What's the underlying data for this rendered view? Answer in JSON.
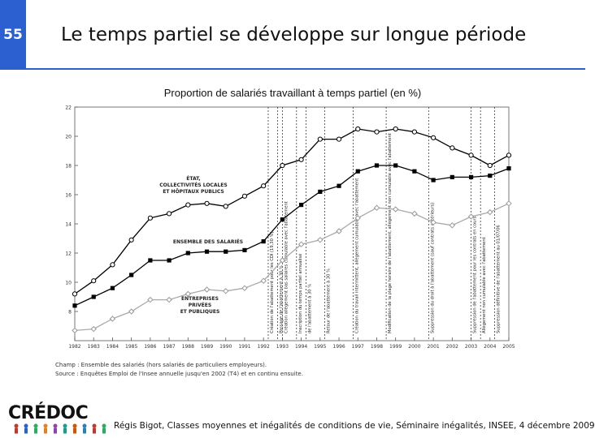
{
  "slide": {
    "number": "55",
    "title": "Le temps partiel se développe sur longue période"
  },
  "chart_data": {
    "type": "line",
    "title": "Proportion de salariés travaillant à temps partiel (en %)",
    "xlabel": "",
    "ylabel": "",
    "x": [
      1982,
      1983,
      1984,
      1985,
      1986,
      1987,
      1988,
      1989,
      1990,
      1991,
      1992,
      1993,
      1994,
      1995,
      1996,
      1997,
      1998,
      1999,
      2000,
      2001,
      2002,
      2003,
      2004,
      2005
    ],
    "ylim": [
      6,
      22
    ],
    "yticks": [
      8,
      10,
      12,
      14,
      16,
      18,
      20,
      22
    ],
    "ytick_labels": [
      "8",
      "10",
      "12",
      "14",
      "16",
      "18",
      "20",
      "22"
    ],
    "series": [
      {
        "name": "ÉTAT, COLLECTIVITÉS LOCALES ET HÔPITAUX PUBLICS",
        "label_lines": [
          "ÉTAT,",
          "COLLECTIVITÉS LOCALES",
          "ET HÔPITAUX PUBLICS"
        ],
        "marker": "open-circle",
        "values": [
          9.2,
          10.1,
          11.2,
          12.9,
          14.4,
          14.7,
          15.3,
          15.4,
          15.2,
          15.9,
          16.6,
          18.0,
          18.4,
          19.8,
          19.8,
          20.5,
          20.3,
          20.5,
          20.3,
          19.9,
          19.2,
          18.7,
          18.0,
          18.7
        ]
      },
      {
        "name": "ENSEMBLE DES SALARIÉS",
        "label_lines": [
          "ENSEMBLE DES SALARIÉS"
        ],
        "marker": "filled-square",
        "values": [
          8.4,
          9.0,
          9.6,
          10.5,
          11.5,
          11.5,
          12.0,
          12.1,
          12.1,
          12.2,
          12.8,
          14.3,
          15.3,
          16.2,
          16.6,
          17.6,
          18.0,
          18.0,
          17.6,
          17.0,
          17.2,
          17.2,
          17.3,
          17.8
        ]
      },
      {
        "name": "ENTREPRISES PRIVÉES ET PUBLIQUES",
        "label_lines": [
          "ENTREPRISES",
          "PRIVÉES",
          "ET PUBLIQUES"
        ],
        "marker": "open-diamond",
        "values": [
          6.7,
          6.8,
          7.5,
          8.0,
          8.8,
          8.8,
          9.2,
          9.5,
          9.4,
          9.6,
          10.1,
          11.5,
          12.6,
          12.9,
          13.5,
          14.4,
          15.1,
          15.0,
          14.7,
          14.1,
          13.9,
          14.5,
          14.8,
          15.4
        ]
      }
    ],
    "annotations": [
      {
        "x": 1992.25,
        "text": "Création de l'abattement pour les CDI (19,30 %)"
      },
      {
        "x": 1992.75,
        "text": "Passage de l'abattement à 30 %"
      },
      {
        "x": 1993.0,
        "text": "Création allègement bas salaires cumulable avec l'abattement"
      },
      {
        "x": 1993.75,
        "text": "Inscription du temps partiel annualisé"
      },
      {
        "x": 1994.25,
        "text": "de l'abattement à 30 %"
      },
      {
        "x": 1995.25,
        "text": "Retour de l'abattement à 30 %"
      },
      {
        "x": 1996.75,
        "text": "Création du travail intermittent, allègement cumulable avec l'abattement"
      },
      {
        "x": 1998.5,
        "text": "Modification de la plage horaire de l'abattement, allègement non cumulable avec l'abattement"
      },
      {
        "x": 2000.75,
        "text": "Suppression du droit à l'abattement (sauf contrats antérieurs)"
      },
      {
        "x": 2003.0,
        "text": "Suppression de l'abattement pour les contrats en cours"
      },
      {
        "x": 2003.5,
        "text": "Allègement non cumulable avec l'abattement"
      },
      {
        "x": 2004.25,
        "text": "Suppression définitive de l'abattement au 01/07/06"
      }
    ]
  },
  "notes": {
    "champ": "Champ : Ensemble des salariés (hors salariés de particuliers employeurs).",
    "source": "Source : Enquêtes Emploi de l'Insee annuelle jusqu'en 2002 (T4) et en continu ensuite."
  },
  "logo": {
    "text": "CRÉDOC"
  },
  "footer": {
    "text": "Régis Bigot, Classes moyennes et inégalités de conditions de vie, Séminaire inégalités, INSEE, 4 décembre 2009"
  },
  "colors": {
    "accent": "#2c5fcf",
    "series_line": "#000000",
    "grid": "#888888"
  }
}
